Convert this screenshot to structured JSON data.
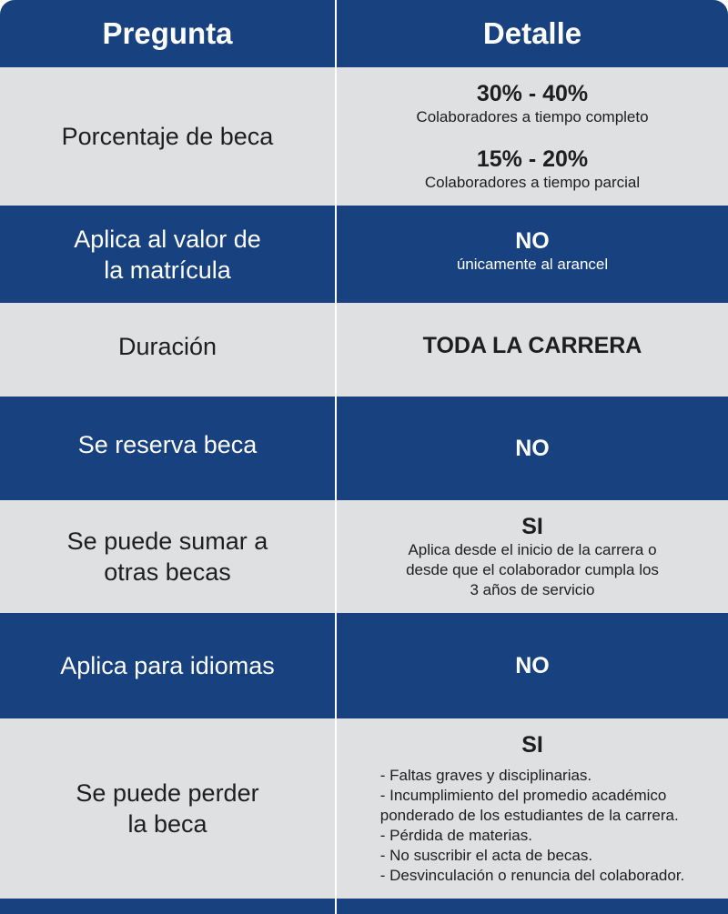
{
  "header": {
    "col_question": "Pregunta",
    "col_detail": "Detalle"
  },
  "rows": [
    {
      "question": "Porcentaje de beca",
      "detail_a_title": "30% - 40%",
      "detail_a_text": "Colaboradores a tiempo completo",
      "detail_b_title": "15% - 20%",
      "detail_b_text": "Colaboradores a tiempo parcial"
    },
    {
      "question_l1": "Aplica al valor de",
      "question_l2": "la matrícula",
      "detail_title": "NO",
      "detail_text": "únicamente al arancel"
    },
    {
      "question": "Duración",
      "detail_title": "TODA LA CARRERA"
    },
    {
      "question": "Se reserva beca",
      "detail_title": "NO"
    },
    {
      "question_l1": "Se puede sumar a",
      "question_l2": "otras becas",
      "detail_title": "SI",
      "detail_l1": "Aplica desde el inicio de la carrera o",
      "detail_l2": "desde que el colaborador cumpla los",
      "detail_l3": "3 años de servicio"
    },
    {
      "question": "Aplica para idiomas",
      "detail_title": "NO"
    },
    {
      "question_l1": "Se puede perder",
      "question_l2": "la beca",
      "detail_title": "SI",
      "list": [
        "- Faltas graves y disciplinarias.",
        "- Incumplimiento del promedio académico",
        "ponderado de los estudiantes de la carrera.",
        "- Pérdida de materias.",
        "- No suscribir el acta de becas.",
        "- Desvinculación o renuncia del colaborador."
      ]
    }
  ],
  "colors": {
    "navy": "#17427f",
    "light_gray": "#dfe0e2",
    "white": "#ffffff"
  }
}
